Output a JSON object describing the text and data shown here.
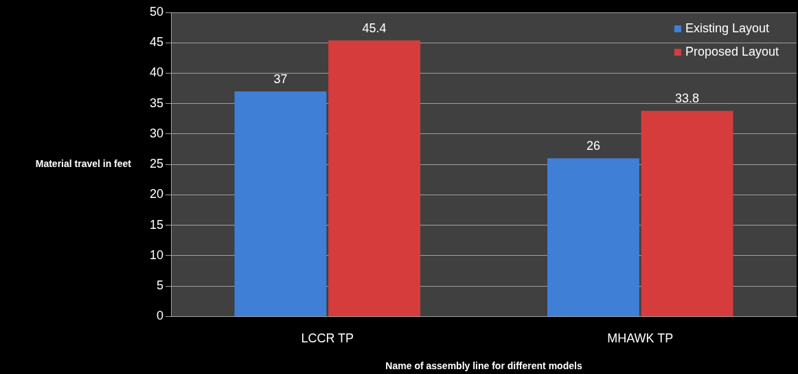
{
  "chart_data": {
    "type": "bar",
    "xlabel": "Name of assembly line for different models",
    "ylabel": "Material travel in feet",
    "categories": [
      "LCCR TP",
      "MHAWK TP"
    ],
    "series": [
      {
        "name": "Existing Layout",
        "color": "#3f7fd6",
        "values": [
          37,
          26
        ]
      },
      {
        "name": "Proposed Layout",
        "color": "#d63c3c",
        "values": [
          45.4,
          33.8
        ]
      }
    ],
    "ylim": [
      0,
      50
    ],
    "yticks": [
      0,
      5,
      10,
      15,
      20,
      25,
      30,
      35,
      40,
      45,
      50
    ],
    "grid": "y",
    "legend": "top right",
    "data_labels": true
  }
}
